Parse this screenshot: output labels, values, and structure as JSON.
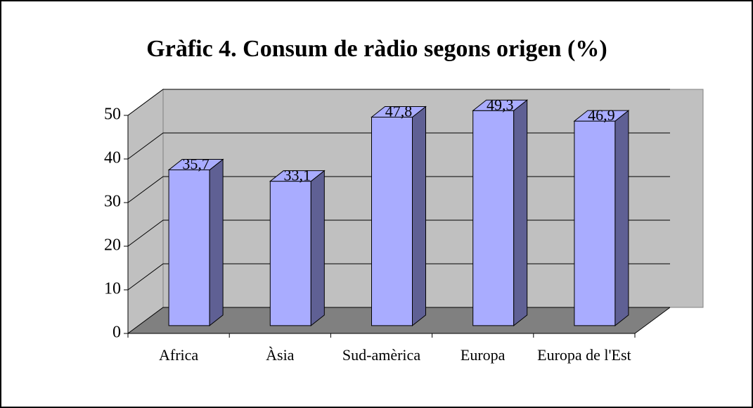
{
  "chart_data": {
    "type": "bar3d",
    "title": "Gràfic 4. Consum de ràdio segons origen (%)",
    "categories": [
      "Africa",
      "Àsia",
      "Sud-amèrica",
      "Europa",
      "Europa de l'Est"
    ],
    "values": [
      35.7,
      33.1,
      47.8,
      49.3,
      46.9
    ],
    "value_labels": [
      "35,7",
      "33,1",
      "47,8",
      "49,3",
      "46,9"
    ],
    "color": "#a9acff",
    "ylim": [
      0,
      50
    ],
    "yticks": [
      0,
      10,
      20,
      30,
      40,
      50
    ],
    "grid": true
  }
}
